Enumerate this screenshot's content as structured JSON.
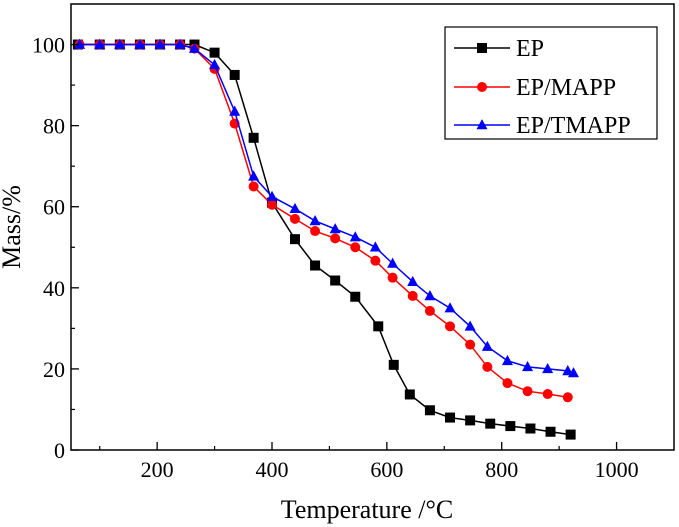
{
  "chart_data": {
    "type": "line",
    "title": "",
    "xlabel": "Temperature /°C",
    "ylabel": "Mass/%",
    "xlim": [
      50,
      1100
    ],
    "ylim": [
      0,
      110
    ],
    "xticks": [
      200,
      400,
      600,
      800,
      1000
    ],
    "yticks": [
      0,
      20,
      40,
      60,
      80,
      100
    ],
    "xtick_labels": [
      "200",
      "400",
      "600",
      "800",
      "1000"
    ],
    "ytick_labels": [
      "0",
      "20",
      "40",
      "60",
      "80",
      "100"
    ],
    "legend_position": "top-right",
    "series": [
      {
        "name": "EP",
        "color": "#000000",
        "marker": "square",
        "x": [
          62,
          100,
          135,
          170,
          205,
          240,
          265,
          300,
          335,
          368,
          400,
          440,
          475,
          510,
          545,
          585,
          612,
          640,
          675,
          710,
          745,
          780,
          815,
          850,
          885,
          920
        ],
        "y": [
          100,
          100,
          100,
          100,
          100,
          100,
          100,
          98,
          92.5,
          77,
          61,
          52,
          45.5,
          41.8,
          37.8,
          30.5,
          21,
          13.7,
          9.8,
          8,
          7.3,
          6.5,
          5.9,
          5.3,
          4.5,
          3.8
        ]
      },
      {
        "name": "EP/MAPP",
        "color": "#ff0000",
        "marker": "circle",
        "x": [
          65,
          100,
          135,
          170,
          205,
          240,
          265,
          300,
          335,
          368,
          400,
          440,
          475,
          510,
          545,
          580,
          610,
          645,
          675,
          710,
          745,
          775,
          810,
          845,
          880,
          915
        ],
        "y": [
          100,
          100,
          100,
          100,
          100,
          100,
          99,
          94,
          80.5,
          65,
          60.5,
          57,
          54,
          52.2,
          50,
          46.7,
          42.5,
          38,
          34.3,
          30.5,
          26,
          20.5,
          16.5,
          14.5,
          13.8,
          13
        ]
      },
      {
        "name": "EP/TMAPP",
        "color": "#0000ff",
        "marker": "triangle",
        "x": [
          65,
          100,
          135,
          170,
          205,
          240,
          265,
          300,
          335,
          368,
          400,
          440,
          475,
          510,
          545,
          580,
          610,
          645,
          675,
          710,
          745,
          775,
          810,
          845,
          880,
          915,
          925
        ],
        "y": [
          100,
          100,
          100,
          100,
          100,
          100,
          99,
          95,
          83.5,
          67.5,
          62.5,
          59.5,
          56.5,
          54.5,
          52.5,
          50,
          46,
          41.5,
          38,
          35,
          30.5,
          25.5,
          22,
          20.5,
          20,
          19.5,
          19
        ]
      }
    ]
  }
}
